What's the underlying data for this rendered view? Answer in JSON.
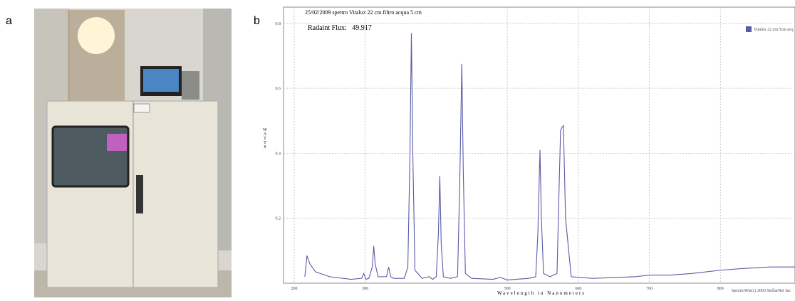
{
  "panel_labels": [
    "a",
    "b"
  ],
  "chart_data": {
    "type": "line",
    "title": "25/02/2009   spettro Vitalux 22 cm filtro acqua 5 cm",
    "annotation": "Radaint Flux:   49.917",
    "xlabel": "Wavelength in Nanometers",
    "ylabel": "WATTS",
    "credit": "SpectroWiz(c) 2003 StellarNet Inc",
    "x": [
      215,
      218,
      222,
      230,
      250,
      280,
      295,
      298,
      301,
      305,
      310,
      312,
      314,
      318,
      330,
      333,
      336,
      340,
      355,
      360,
      363,
      365,
      367,
      370,
      380,
      390,
      395,
      400,
      403,
      405,
      407,
      410,
      420,
      430,
      433,
      436,
      438,
      441,
      450,
      480,
      490,
      500,
      530,
      540,
      543,
      546,
      548,
      551,
      560,
      570,
      573,
      575,
      577,
      579,
      582,
      590,
      620,
      680,
      700,
      730,
      760,
      800,
      830,
      870,
      890,
      905
    ],
    "series": [
      {
        "name": "Vitalux 22 cm 5cm acq",
        "color": "#5a5aa8",
        "values": [
          0.02,
          0.085,
          0.06,
          0.035,
          0.02,
          0.012,
          0.015,
          0.03,
          0.012,
          0.015,
          0.05,
          0.115,
          0.06,
          0.02,
          0.02,
          0.05,
          0.02,
          0.015,
          0.015,
          0.05,
          0.4,
          0.77,
          0.4,
          0.04,
          0.015,
          0.02,
          0.012,
          0.02,
          0.15,
          0.33,
          0.12,
          0.02,
          0.015,
          0.02,
          0.3,
          0.675,
          0.35,
          0.03,
          0.015,
          0.012,
          0.018,
          0.01,
          0.015,
          0.02,
          0.15,
          0.41,
          0.2,
          0.03,
          0.02,
          0.03,
          0.3,
          0.47,
          0.48,
          0.485,
          0.2,
          0.02,
          0.015,
          0.02,
          0.025,
          0.025,
          0.03,
          0.04,
          0.045,
          0.05,
          0.05,
          0.05
        ]
      }
    ],
    "xlim": [
      185,
      905
    ],
    "xticks": [
      200,
      300,
      500,
      600,
      700,
      800
    ],
    "ylim": [
      0,
      0.85
    ],
    "yticks": [
      0.2,
      0.4,
      0.6,
      0.8
    ],
    "grid": true,
    "legend": "upper right"
  }
}
